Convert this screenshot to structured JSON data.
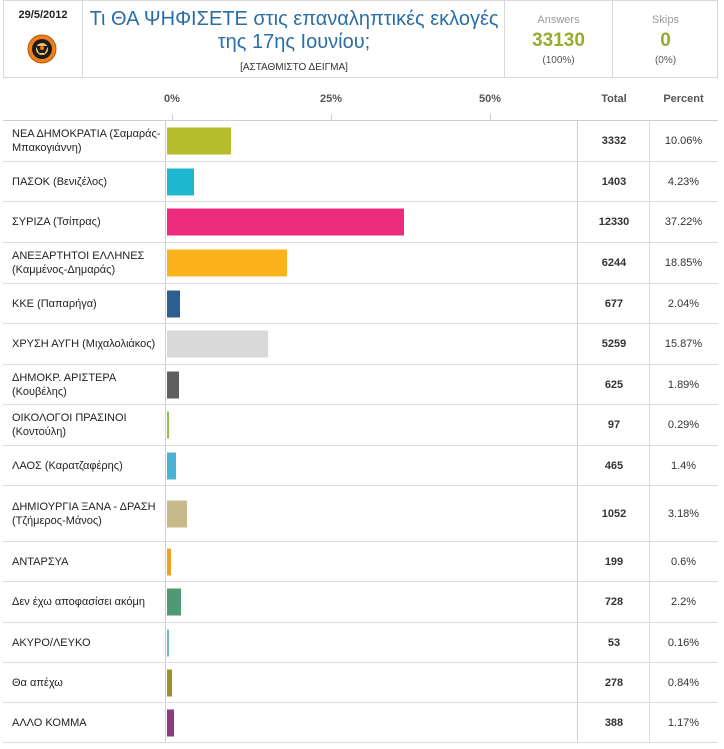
{
  "header": {
    "date": "29/5/2012",
    "question": "Τι ΘΑ ΨΗΦΙΣΕΤΕ στις επαναληπτικές εκλογές της 17ης Ιουνίου;",
    "sample_note": "[ΑΣΤΑΘΜΙΣΤΟ ΔΕΙΓΜΑ]",
    "answers": {
      "label": "Answers",
      "value": "33130",
      "pct": "(100%)"
    },
    "skips": {
      "label": "Skips",
      "value": "0",
      "pct": "(0%)"
    }
  },
  "table": {
    "total_label": "Total",
    "percent_label": "Percent"
  },
  "chart_data": {
    "type": "bar",
    "orientation": "horizontal",
    "x_ticks": [
      "0%",
      "25%",
      "50%"
    ],
    "xlim": [
      0,
      65
    ],
    "series": [
      {
        "values": [
          10.06,
          4.23,
          37.22,
          18.85,
          2.04,
          15.87,
          1.89,
          0.29,
          1.4,
          3.18,
          0.6,
          2.2,
          0.16,
          0.84,
          1.17
        ]
      }
    ],
    "categories": [
      "ΝΕΑ ΔΗΜΟΚΡΑΤΙΑ (Σαμαράς-Μπακογιάννη)",
      "ΠΑΣΟΚ (Βενιζέλος)",
      "ΣΥΡΙΖΑ (Τσίπρας)",
      "ΑΝΕΞΑΡΤΗΤΟΙ ΕΛΛΗΝΕΣ (Καμμένος-Δημαράς)",
      "ΚΚΕ (Παπαρήγα)",
      "ΧΡΥΣΗ ΑΥΓΗ (Μιχαλολιάκος)",
      "ΔΗΜΟΚΡ. ΑΡΙΣΤΕΡΑ (Κουβέλης)",
      "ΟΙΚΟΛΟΓΟΙ ΠΡΑΣΙΝΟΙ (Κοντούλη)",
      "ΛΑΟΣ (Καρατζαφέρης)",
      "ΔΗΜΙΟΥΡΓΙΑ ΞΑΝΑ - ΔΡΑΣΗ (Τζήμερος-Μάνος)",
      "ΑΝΤΑΡΣΥΑ",
      "Δεν έχω αποφασίσει ακόμη",
      "ΑΚΥΡΟ/ΛΕΥΚΟ",
      "Θα απέχω",
      "ΑΛΛΟ ΚΟΜΜΑ"
    ],
    "rows": [
      {
        "label": "ΝΕΑ ΔΗΜΟΚΡΑΤΙΑ (Σαμαράς-Μπακογιάννη)",
        "total": "3332",
        "percent_text": "10.06%",
        "color": "#b4bd2a"
      },
      {
        "label": "ΠΑΣΟΚ (Βενιζέλος)",
        "total": "1403",
        "percent_text": "4.23%",
        "color": "#1fb7d0"
      },
      {
        "label": "ΣΥΡΙΖΑ (Τσίπρας)",
        "total": "12330",
        "percent_text": "37.22%",
        "color": "#ee2c7d"
      },
      {
        "label": "ΑΝΕΞΑΡΤΗΤΟΙ ΕΛΛΗΝΕΣ (Καμμένος-Δημαράς)",
        "total": "6244",
        "percent_text": "18.85%",
        "color": "#fbb31c"
      },
      {
        "label": "ΚΚΕ (Παπαρήγα)",
        "total": "677",
        "percent_text": "2.04%",
        "color": "#2d5f92"
      },
      {
        "label": "ΧΡΥΣΗ ΑΥΓΗ (Μιχαλολιάκος)",
        "total": "5259",
        "percent_text": "15.87%",
        "color": "#d9d9d9"
      },
      {
        "label": "ΔΗΜΟΚΡ. ΑΡΙΣΤΕΡΑ (Κουβέλης)",
        "total": "625",
        "percent_text": "1.89%",
        "color": "#5e5e5e"
      },
      {
        "label": "ΟΙΚΟΛΟΓΟΙ ΠΡΑΣΙΝΟΙ (Κοντούλη)",
        "total": "97",
        "percent_text": "0.29%",
        "color": "#8fbf4f"
      },
      {
        "label": "ΛΑΟΣ (Καρατζαφέρης)",
        "total": "465",
        "percent_text": "1.4%",
        "color": "#4ab3d3"
      },
      {
        "label": "ΔΗΜΙΟΥΡΓΙΑ ΞΑΝΑ - ΔΡΑΣΗ (Τζήμερος-Μάνος)",
        "total": "1052",
        "percent_text": "3.18%",
        "color": "#c8b98a"
      },
      {
        "label": "ΑΝΤΑΡΣΥΑ",
        "total": "199",
        "percent_text": "0.6%",
        "color": "#f0a21c"
      },
      {
        "label": "Δεν έχω αποφασίσει ακόμη",
        "total": "728",
        "percent_text": "2.2%",
        "color": "#4e9a74"
      },
      {
        "label": "ΑΚΥΡΟ/ΛΕΥΚΟ",
        "total": "53",
        "percent_text": "0.16%",
        "color": "#6fb6c9"
      },
      {
        "label": "Θα απέχω",
        "total": "278",
        "percent_text": "0.84%",
        "color": "#9a9224"
      },
      {
        "label": "ΑΛΛΟ ΚΟΜΜΑ",
        "total": "388",
        "percent_text": "1.17%",
        "color": "#8b3a86"
      }
    ]
  }
}
